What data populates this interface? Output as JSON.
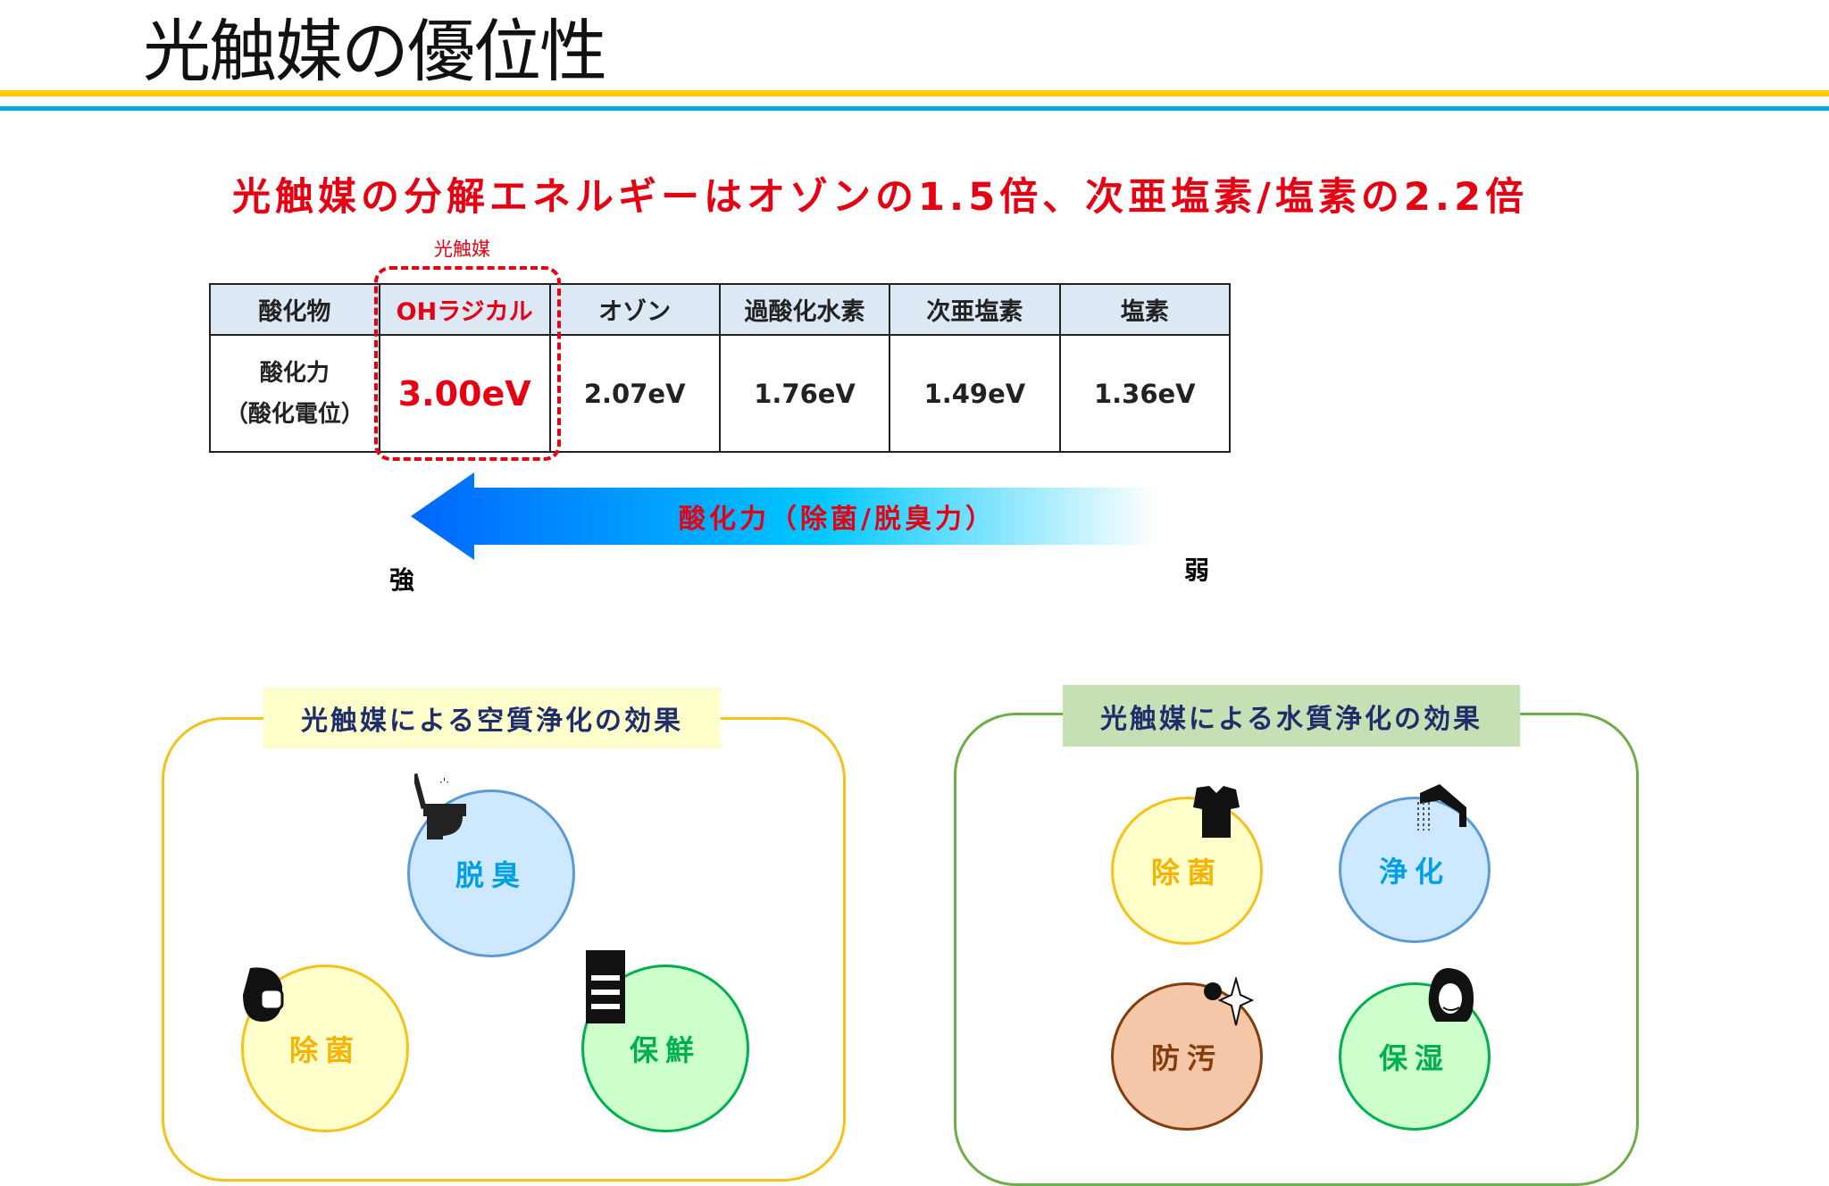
{
  "title": "光触媒の優位性",
  "headline": "光触媒の分解エネルギーはオゾンの1.5倍、次亜塩素/塩素の2.2倍",
  "photocatalyst_label": "光触媒",
  "table": {
    "headers": [
      "酸化物",
      "OHラジカル",
      "オゾン",
      "過酸化水素",
      "次亜塩素",
      "塩素"
    ],
    "row_label_line1": "酸化力",
    "row_label_line2": "（酸化電位）",
    "values": [
      "3.00eV",
      "2.07eV",
      "1.76eV",
      "1.49eV",
      "1.36eV"
    ]
  },
  "arrow": {
    "label": "酸化力（除菌/脱臭力）",
    "strong": "強",
    "weak": "弱"
  },
  "air_panel": {
    "title": "光触媒による空質浄化の効果",
    "items": [
      "脱臭",
      "除菌",
      "保鮮"
    ]
  },
  "water_panel": {
    "title": "光触媒による水質浄化の効果",
    "items": [
      "除菌",
      "浄化",
      "防汚",
      "保湿"
    ]
  },
  "colors": {
    "accent_red": "#e60012",
    "line_yellow": "#ffc800",
    "line_blue": "#00a6e6"
  }
}
